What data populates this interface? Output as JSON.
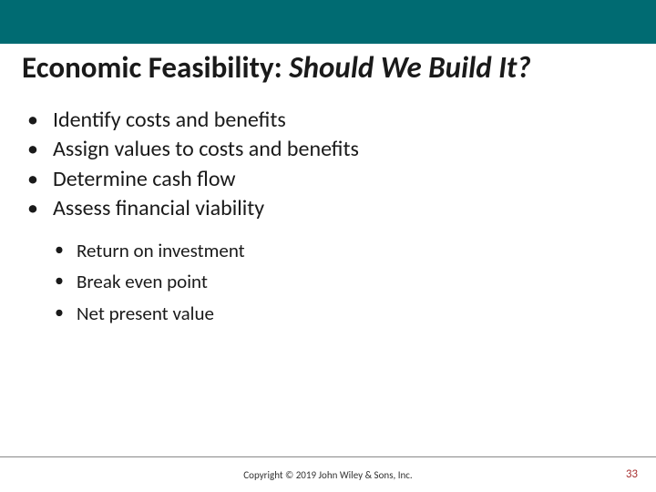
{
  "colors": {
    "header_bar": "#006b72",
    "text": "#1a1a1a",
    "page_number": "#a83232",
    "divider": "#888888",
    "background": "#ffffff"
  },
  "title": {
    "plain": "Economic Feasibility: ",
    "italic": "Should We Build It?"
  },
  "bullets": [
    "Identify costs and benefits",
    "Assign values to costs and benefits",
    "Determine cash flow",
    "Assess financial viability"
  ],
  "sub_bullets": [
    "Return on investment",
    "Break even point",
    "Net present value"
  ],
  "footer": {
    "copyright": "Copyright © 2019 John Wiley & Sons, Inc.",
    "page_number": "33"
  }
}
